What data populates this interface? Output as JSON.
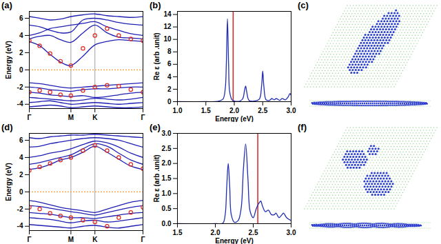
{
  "chart_data": [
    {
      "type": "line",
      "title": "(a)",
      "ylabel": "Energy (eV)",
      "x": [
        0,
        0.25,
        0.5,
        0.75,
        1,
        1.29,
        1.577,
        1.87,
        2.15,
        2.44,
        2.732
      ],
      "xlim": [
        0,
        2.732
      ],
      "xticks": [
        {
          "value": 0,
          "label": "Γ"
        },
        {
          "value": 1,
          "label": "M"
        },
        {
          "value": 1.577,
          "label": "K"
        },
        {
          "value": 2.732,
          "label": "Γ"
        }
      ],
      "ylim": [
        -4.5,
        6.8
      ],
      "yticks": [
        -4,
        -2,
        0,
        2,
        4,
        6
      ],
      "grid": "x",
      "reference_lines": [
        {
          "axis": "y",
          "value": 0,
          "color": "#f0a030",
          "line_style": "dotted"
        }
      ],
      "series": [
        {
          "color": "#1f1fb4",
          "values": [
            3.3,
            2.8,
            1.8,
            0.9,
            0.5,
            1.6,
            2.9,
            3.3,
            3.5,
            3.4,
            3.3
          ]
        },
        {
          "color": "#1f1fb4",
          "values": [
            3.6,
            3.9,
            4.0,
            3.5,
            3.2,
            4.3,
            5.2,
            4.3,
            3.8,
            3.7,
            3.6
          ]
        },
        {
          "color": "#1f1fb4",
          "values": [
            4.0,
            4.3,
            4.8,
            5.0,
            5.2,
            5.4,
            5.6,
            5.0,
            4.6,
            4.2,
            4.0
          ]
        },
        {
          "color": "#1f1fb4",
          "values": [
            5.2,
            5.0,
            4.6,
            4.3,
            4.4,
            5.8,
            6.0,
            5.8,
            5.5,
            5.3,
            5.2
          ]
        },
        {
          "color": "#1f1fb4",
          "values": [
            6.2,
            6.0,
            5.8,
            5.9,
            6.2,
            6.4,
            6.5,
            6.3,
            6.2,
            6.1,
            6.2
          ]
        },
        {
          "color": "#1f1fb4",
          "values": [
            -1.5,
            -1.6,
            -1.8,
            -2.0,
            -2.1,
            -2.0,
            -1.9,
            -1.8,
            -1.7,
            -1.6,
            -1.5
          ]
        },
        {
          "color": "#1f1fb4",
          "values": [
            -2.0,
            -2.1,
            -2.3,
            -2.4,
            -2.5,
            -2.3,
            -2.2,
            -2.2,
            -2.1,
            -2.0,
            -2.0
          ]
        },
        {
          "color": "#1f1fb4",
          "values": [
            -2.6,
            -2.7,
            -2.9,
            -3.0,
            -3.1,
            -3.0,
            -3.2,
            -3.1,
            -2.9,
            -2.7,
            -2.6
          ]
        },
        {
          "color": "#1f1fb4",
          "values": [
            -3.2,
            -3.3,
            -3.4,
            -3.5,
            -3.6,
            -3.5,
            -3.3,
            -3.4,
            -3.5,
            -3.4,
            -3.2
          ]
        },
        {
          "color": "#1f1fb4",
          "values": [
            -3.8,
            -3.7,
            -3.6,
            -3.8,
            -4.0,
            -3.9,
            -3.8,
            -3.9,
            -4.0,
            -3.9,
            -3.8
          ]
        },
        {
          "color": "#1f1fb4",
          "values": [
            -4.3,
            -4.2,
            -4.1,
            -4.2,
            -4.4,
            -4.3,
            -4.2,
            -4.3,
            -4.4,
            -4.4,
            -4.3
          ]
        },
        {
          "color": "#e0281e",
          "marker": "circle",
          "line_style": "none",
          "values": [
            3.4,
            2.8,
            1.9,
            1.0,
            0.5,
            2.5,
            4.0,
            4.8,
            4.0,
            3.6,
            3.4
          ]
        },
        {
          "color": "#e0281e",
          "marker": "circle",
          "line_style": "none",
          "values": [
            -2.6,
            -2.4,
            -2.6,
            -2.9,
            -3.0,
            -2.4,
            -2.0,
            -1.8,
            -1.9,
            -2.3,
            -2.6
          ]
        }
      ]
    },
    {
      "type": "line",
      "title": "(b)",
      "xlabel": "Energy (eV)",
      "ylabel": "Re ε (arb .unit)",
      "x": [
        1.0,
        1.5,
        1.7,
        1.8,
        1.84,
        1.86,
        1.88,
        1.9,
        1.92,
        1.96,
        2.0,
        2.1,
        2.15,
        2.18,
        2.2,
        2.22,
        2.26,
        2.35,
        2.44,
        2.48,
        2.5,
        2.52,
        2.56,
        2.62,
        2.66,
        2.7,
        2.74,
        2.8,
        2.84,
        2.9,
        2.95,
        2.98,
        3.0
      ],
      "xlim": [
        1.0,
        3.0
      ],
      "xticks": [
        {
          "value": 1,
          "label": "1.0"
        },
        1.5,
        {
          "value": 2,
          "label": "2.0"
        },
        2.5,
        {
          "value": 3,
          "label": "3.0"
        }
      ],
      "ylim": [
        0,
        14.5
      ],
      "yticks": [
        0,
        2,
        4,
        6,
        8,
        10,
        12,
        14
      ],
      "reference_lines": [
        {
          "axis": "x",
          "value": 1.98,
          "color": "#d62020",
          "line_style": "solid"
        }
      ],
      "series": [
        {
          "color": "#1f2db0",
          "values": [
            0,
            0,
            0.05,
            0.4,
            2,
            6,
            13.3,
            6,
            1.5,
            0.3,
            0.1,
            0.1,
            0.5,
            1.8,
            2.5,
            1.5,
            0.2,
            0.1,
            0.4,
            2.5,
            4.9,
            2.5,
            0.3,
            0.2,
            0.5,
            0.3,
            0.5,
            0.2,
            0.5,
            0.3,
            0.8,
            1.3,
            1.0
          ]
        }
      ]
    },
    {
      "type": "image",
      "title": "(c)"
    },
    {
      "type": "line",
      "title": "(d)",
      "ylabel": "Energy (eV)",
      "x": [
        0,
        0.25,
        0.5,
        0.75,
        1,
        1.29,
        1.577,
        1.87,
        2.15,
        2.44,
        2.732
      ],
      "xlim": [
        0,
        2.732
      ],
      "xticks": [
        {
          "value": 0,
          "label": "Γ"
        },
        {
          "value": 1,
          "label": "M"
        },
        {
          "value": 1.577,
          "label": "K"
        },
        {
          "value": 2.732,
          "label": "Γ"
        }
      ],
      "ylim": [
        -4.5,
        6.8
      ],
      "yticks": [
        -4,
        -2,
        0,
        2,
        4,
        6
      ],
      "grid": "x",
      "reference_lines": [
        {
          "axis": "y",
          "value": 0,
          "color": "#f0a030",
          "line_style": "dotted"
        }
      ],
      "series": [
        {
          "color": "#1f1fb4",
          "values": [
            2.6,
            2.8,
            3.2,
            3.7,
            4.0,
            4.6,
            5.3,
            4.6,
            3.8,
            3.0,
            2.6
          ]
        },
        {
          "color": "#1f1fb4",
          "values": [
            3.2,
            3.4,
            3.7,
            4.0,
            4.3,
            5.0,
            5.6,
            5.3,
            4.5,
            3.7,
            3.2
          ]
        },
        {
          "color": "#1f1fb4",
          "values": [
            4.0,
            4.2,
            4.5,
            4.7,
            5.0,
            5.5,
            5.9,
            5.7,
            5.2,
            4.5,
            4.0
          ]
        },
        {
          "color": "#1f1fb4",
          "values": [
            5.2,
            5.3,
            5.6,
            5.8,
            6.0,
            6.2,
            6.3,
            6.2,
            6.0,
            5.6,
            5.2
          ]
        },
        {
          "color": "#1f1fb4",
          "values": [
            6.3,
            6.2,
            6.4,
            6.5,
            6.6,
            6.6,
            6.7,
            6.6,
            6.5,
            6.4,
            6.3
          ]
        },
        {
          "color": "#1f1fb4",
          "values": [
            -1.0,
            -1.2,
            -1.5,
            -1.8,
            -2.0,
            -2.2,
            -2.4,
            -2.0,
            -1.6,
            -1.2,
            -1.0
          ]
        },
        {
          "color": "#1f1fb4",
          "values": [
            -1.6,
            -1.7,
            -1.9,
            -2.1,
            -2.3,
            -2.5,
            -2.7,
            -2.4,
            -2.1,
            -1.8,
            -1.6
          ]
        },
        {
          "color": "#1f1fb4",
          "values": [
            -2.4,
            -2.5,
            -2.6,
            -2.8,
            -3.0,
            -3.0,
            -3.1,
            -2.9,
            -2.7,
            -2.5,
            -2.4
          ]
        },
        {
          "color": "#1f1fb4",
          "values": [
            -3.0,
            -3.1,
            -3.2,
            -3.4,
            -3.6,
            -3.4,
            -3.3,
            -3.5,
            -3.4,
            -3.2,
            -3.0
          ]
        },
        {
          "color": "#1f1fb4",
          "values": [
            -3.8,
            -3.9,
            -4.0,
            -4.1,
            -4.2,
            -4.0,
            -3.9,
            -4.1,
            -4.2,
            -4.0,
            -3.8
          ]
        },
        {
          "color": "#e0281e",
          "marker": "circle",
          "line_style": "none",
          "values": [
            2.5,
            2.9,
            3.3,
            3.7,
            4.0,
            4.8,
            5.4,
            4.8,
            4.0,
            3.2,
            2.7
          ]
        },
        {
          "color": "#e0281e",
          "marker": "circle",
          "line_style": "none",
          "values": [
            -1.8,
            -2.0,
            -2.5,
            -2.8,
            -3.0,
            -3.3,
            -3.5,
            -4.0,
            -3.0,
            -2.4,
            -1.8
          ]
        }
      ]
    },
    {
      "type": "line",
      "title": "(e)",
      "xlabel": "Energy (eV)",
      "ylabel": "Re ε (arb .unit)",
      "x": [
        1.5,
        2.0,
        2.1,
        2.13,
        2.15,
        2.17,
        2.19,
        2.21,
        2.25,
        2.3,
        2.34,
        2.37,
        2.4,
        2.43,
        2.46,
        2.5,
        2.54,
        2.58,
        2.6,
        2.62,
        2.66,
        2.7,
        2.74,
        2.78,
        2.8,
        2.84,
        2.88,
        2.9,
        2.94,
        3.0
      ],
      "xlim": [
        1.5,
        3.0
      ],
      "xticks": [
        1.5,
        {
          "value": 2,
          "label": "2.0"
        },
        2.5,
        {
          "value": 3,
          "label": "3.0"
        }
      ],
      "ylim": [
        0,
        3.0
      ],
      "yticks": [
        {
          "value": 0,
          "label": "0.0"
        },
        0.5,
        {
          "value": 1,
          "label": "1.0"
        },
        1.5,
        {
          "value": 2,
          "label": "2.0"
        },
        2.5,
        {
          "value": 3,
          "label": "3.0"
        }
      ],
      "reference_lines": [
        {
          "axis": "x",
          "value": 2.56,
          "color": "#d62020",
          "line_style": "solid"
        }
      ],
      "series": [
        {
          "color": "#1f2db0",
          "values": [
            0,
            0,
            0.02,
            0.3,
            1.2,
            2.0,
            1.2,
            0.3,
            0.05,
            0.1,
            0.5,
            1.8,
            2.65,
            1.5,
            0.4,
            0.2,
            0.5,
            0.7,
            0.75,
            0.6,
            0.4,
            0.45,
            0.3,
            0.3,
            0.35,
            0.2,
            0.3,
            0.35,
            0.2,
            0.1
          ]
        }
      ]
    },
    {
      "type": "image",
      "title": "(f)"
    }
  ]
}
